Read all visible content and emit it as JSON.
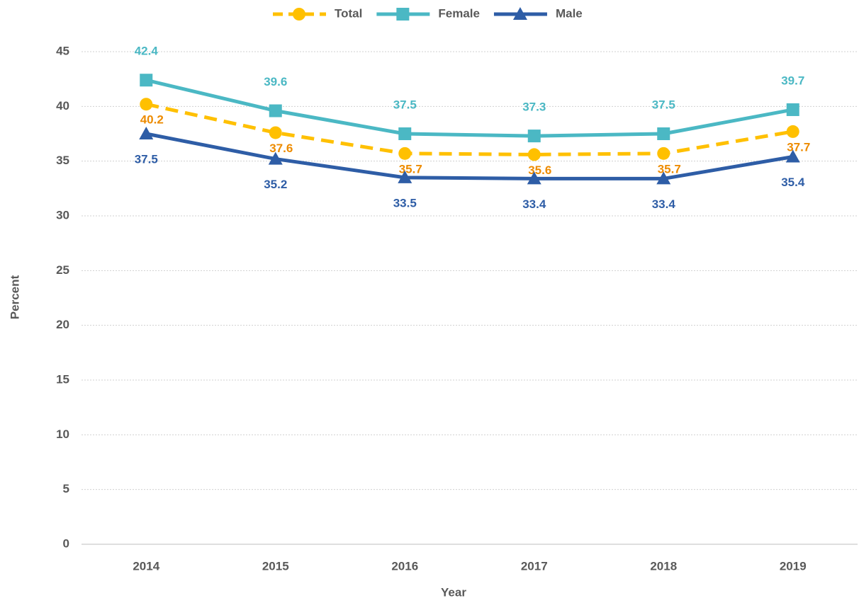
{
  "chart_data": {
    "type": "line",
    "x_label": "Year",
    "y_label": "Percent",
    "categories": [
      "2014",
      "2015",
      "2016",
      "2017",
      "2018",
      "2019"
    ],
    "series": [
      {
        "name": "Total",
        "color": "#FFC000",
        "label_color": "#ED8B00",
        "marker": "circle",
        "linestyle": "dashed",
        "label_position": "below",
        "values": [
          40.2,
          37.6,
          35.7,
          35.6,
          35.7,
          37.7
        ]
      },
      {
        "name": "Female",
        "color": "#4BB8C4",
        "label_color": "#4BB8C4",
        "marker": "square",
        "linestyle": "solid",
        "label_position": "above",
        "values": [
          42.4,
          39.6,
          37.5,
          37.3,
          37.5,
          39.7
        ]
      },
      {
        "name": "Male",
        "color": "#2E5DA6",
        "label_color": "#2E5DA6",
        "marker": "triangle",
        "linestyle": "solid",
        "label_position": "below",
        "values": [
          37.5,
          35.2,
          33.5,
          33.4,
          33.4,
          35.4
        ]
      }
    ],
    "ylim": [
      0,
      45
    ],
    "yticks": [
      0,
      5,
      10,
      15,
      20,
      25,
      30,
      35,
      40,
      45
    ],
    "grid": true,
    "legend": "top"
  }
}
